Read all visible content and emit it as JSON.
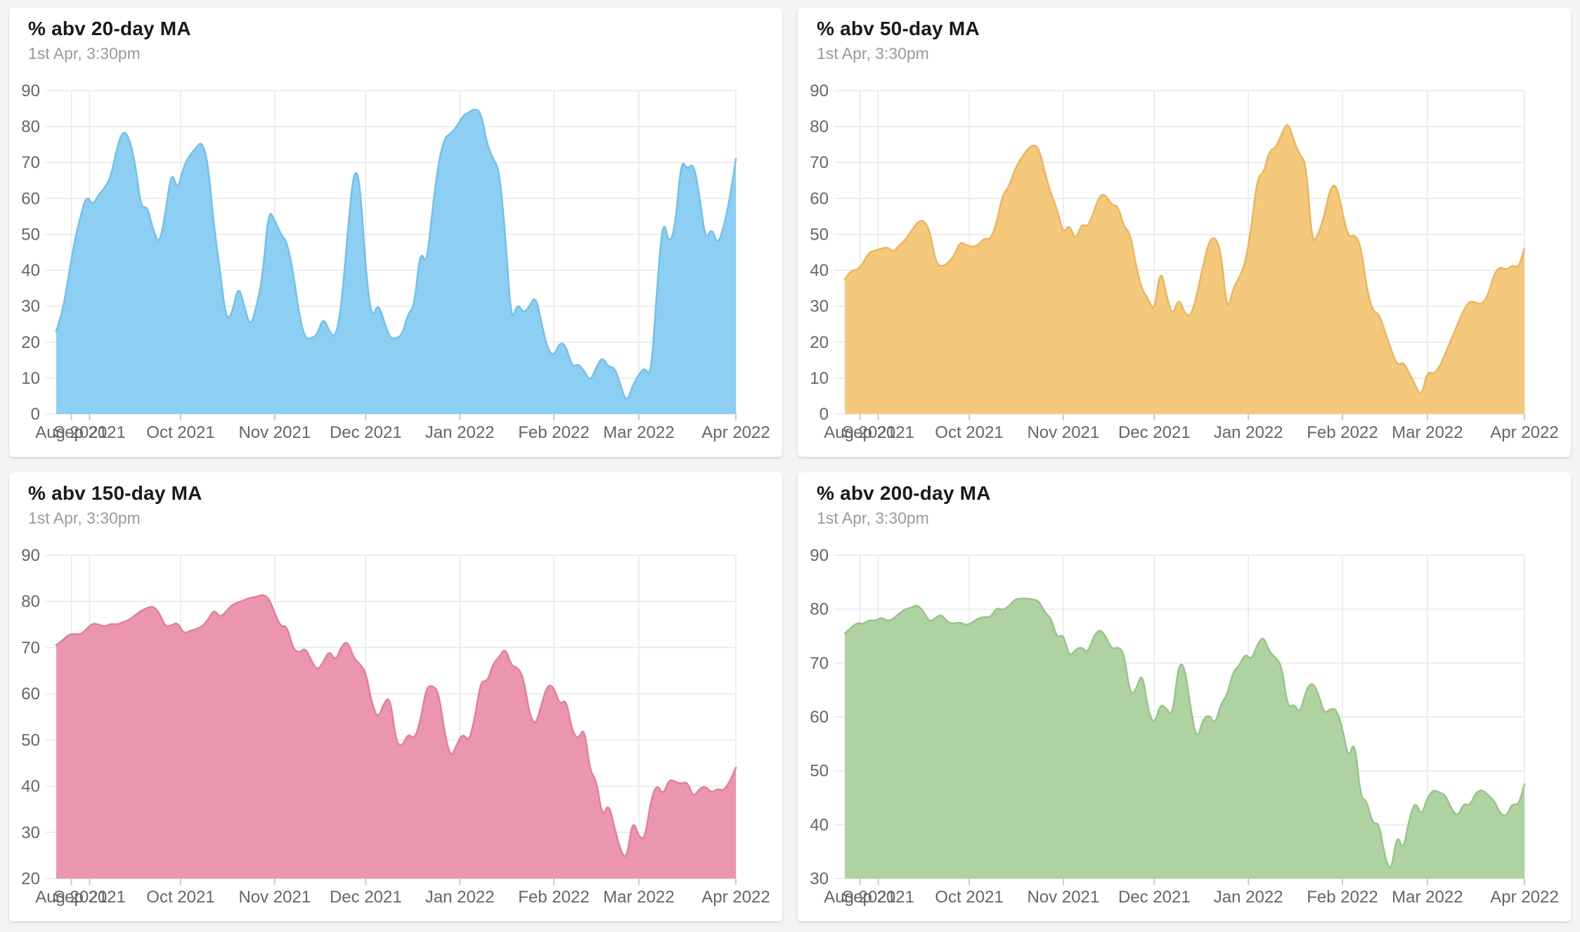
{
  "page": {
    "background": "#f4f4f5",
    "card_background": "#ffffff",
    "grid_color": "#e8e8e8",
    "tick_color": "#c9c9c9",
    "axis_label_color": "#666666",
    "title_color": "#1a1a1a",
    "subtitle_color": "#9a9a9a"
  },
  "chart_data": [
    {
      "type": "area",
      "title": "% abv 20-day MA",
      "subtitle": "1st Apr, 3:30pm",
      "fill_color": "#8CCFF2",
      "stroke_color": "#74C0EA",
      "ylim": [
        0,
        90
      ],
      "yticks": [
        0,
        10,
        20,
        30,
        40,
        50,
        60,
        70,
        80,
        90
      ],
      "x_domain_days": [
        0,
        224
      ],
      "x_tick_days": [
        5,
        11,
        41,
        72,
        102,
        133,
        164,
        192,
        224
      ],
      "x_tick_labels": [
        "Aug 2021",
        "Sep 2021",
        "Oct 2021",
        "Nov 2021",
        "Dec 2021",
        "Jan 2022",
        "Feb 2022",
        "Mar 2022",
        "Apr 2022"
      ],
      "legend": "off",
      "grid": "on",
      "values": [
        23,
        28,
        38,
        48,
        55,
        61,
        58,
        61,
        63,
        66,
        74,
        79,
        77,
        70,
        57,
        58,
        51,
        47,
        56,
        68,
        62,
        69,
        72,
        74,
        76,
        70,
        52,
        40,
        26,
        28,
        36,
        30,
        24,
        30,
        38,
        57,
        54,
        50,
        48,
        40,
        28,
        21,
        21,
        22,
        27,
        23,
        21,
        30,
        50,
        68,
        66,
        40,
        26,
        31,
        26,
        21,
        21,
        22,
        28,
        30,
        46,
        41,
        57,
        70,
        77,
        78,
        80,
        83,
        84,
        85,
        84,
        75,
        71,
        68,
        50,
        25,
        31,
        28,
        30,
        33,
        25,
        18,
        16,
        20,
        19,
        13,
        14,
        12,
        9,
        13,
        16,
        13,
        13,
        8,
        3,
        8,
        11,
        13,
        10,
        35,
        55,
        47,
        52,
        71,
        68,
        70,
        61,
        48,
        52,
        47,
        52,
        60,
        71
      ]
    },
    {
      "type": "area",
      "title": "% abv 50-day MA",
      "subtitle": "1st Apr, 3:30pm",
      "fill_color": "#F5C97B",
      "stroke_color": "#EBB45E",
      "ylim": [
        0,
        90
      ],
      "yticks": [
        0,
        10,
        20,
        30,
        40,
        50,
        60,
        70,
        80,
        90
      ],
      "x_domain_days": [
        0,
        224
      ],
      "x_tick_days": [
        5,
        11,
        41,
        72,
        102,
        133,
        164,
        192,
        224
      ],
      "x_tick_labels": [
        "Aug 2021",
        "Sep 2021",
        "Oct 2021",
        "Nov 2021",
        "Dec 2021",
        "Jan 2022",
        "Feb 2022",
        "Mar 2022",
        "Apr 2022"
      ],
      "legend": "off",
      "grid": "on",
      "values": [
        37.5,
        40,
        40,
        42,
        45,
        45.5,
        46,
        46.5,
        45,
        47,
        48.5,
        51,
        53.5,
        54,
        51,
        42,
        41,
        42,
        44,
        48,
        47,
        46.5,
        47,
        49,
        48.5,
        53,
        61,
        63,
        68,
        71,
        73.5,
        75,
        74,
        67,
        61,
        57,
        50,
        53,
        48,
        53,
        52,
        56,
        61,
        61,
        58,
        58,
        52,
        50.5,
        41,
        34.5,
        32,
        28,
        41,
        33,
        27,
        32.5,
        28,
        27,
        33,
        41,
        48,
        49.5,
        45,
        28,
        35,
        38,
        42,
        52,
        66,
        67,
        73.5,
        74,
        78,
        81.5,
        76,
        72,
        70,
        47,
        50,
        55,
        63,
        64,
        56,
        49,
        50,
        47,
        35,
        28.5,
        28,
        23,
        18,
        13.5,
        14.5,
        11.5,
        8,
        4.5,
        12,
        11,
        13,
        17,
        21,
        25,
        29,
        31.5,
        31,
        30.5,
        33,
        39,
        41,
        40,
        41.5,
        40.5,
        46
      ]
    },
    {
      "type": "area",
      "title": "% abv 150-day MA",
      "subtitle": "1st Apr, 3:30pm",
      "fill_color": "#EC95AF",
      "stroke_color": "#E27F9D",
      "ylim": [
        20,
        90
      ],
      "yticks": [
        20,
        30,
        40,
        50,
        60,
        70,
        80,
        90
      ],
      "x_domain_days": [
        0,
        224
      ],
      "x_tick_days": [
        5,
        11,
        41,
        72,
        102,
        133,
        164,
        192,
        224
      ],
      "x_tick_labels": [
        "Aug 2021",
        "Sep 2021",
        "Oct 2021",
        "Nov 2021",
        "Dec 2021",
        "Jan 2022",
        "Feb 2022",
        "Mar 2022",
        "Apr 2022"
      ],
      "legend": "off",
      "grid": "on",
      "values": [
        70.5,
        71.5,
        72.8,
        73,
        72.8,
        74,
        75.3,
        75,
        74.5,
        75.2,
        75,
        75.5,
        76,
        77,
        78,
        78.6,
        79,
        77.5,
        74.5,
        74.8,
        75.5,
        73,
        73.6,
        74,
        74.5,
        76,
        78.3,
        76.5,
        77.8,
        79.3,
        79.8,
        80.3,
        80.8,
        81,
        81.5,
        80.8,
        77.5,
        74.5,
        74.8,
        69.8,
        68.8,
        70,
        67.3,
        65,
        66.8,
        69.5,
        67,
        70.3,
        71.5,
        67.8,
        66.5,
        64.8,
        58,
        54.5,
        58,
        59.5,
        49.5,
        48.5,
        51.5,
        50,
        54,
        61.5,
        61.8,
        60.5,
        51.5,
        46,
        49,
        51.5,
        49.5,
        55,
        63,
        62.5,
        66.5,
        68,
        70,
        66,
        65.8,
        63.5,
        55.5,
        53,
        58,
        62,
        61.5,
        57.5,
        59,
        52,
        50,
        53,
        43,
        41.5,
        33,
        36.5,
        31,
        26,
        24,
        33,
        29,
        28.5,
        37,
        40.5,
        38,
        41.5,
        41,
        40.5,
        41,
        37.5,
        39.5,
        40,
        38.5,
        39.5,
        39,
        41,
        44
      ]
    },
    {
      "type": "area",
      "title": "% abv 200-day MA",
      "subtitle": "1st Apr, 3:30pm",
      "fill_color": "#AED2A2",
      "stroke_color": "#99C489",
      "ylim": [
        30,
        90
      ],
      "yticks": [
        30,
        40,
        50,
        60,
        70,
        80,
        90
      ],
      "x_domain_days": [
        0,
        224
      ],
      "x_tick_days": [
        5,
        11,
        41,
        72,
        102,
        133,
        164,
        192,
        224
      ],
      "x_tick_labels": [
        "Aug 2021",
        "Sep 2021",
        "Oct 2021",
        "Nov 2021",
        "Dec 2021",
        "Jan 2022",
        "Feb 2022",
        "Mar 2022",
        "Apr 2022"
      ],
      "legend": "off",
      "grid": "on",
      "values": [
        75.5,
        76.5,
        77.5,
        77.2,
        78,
        77.8,
        78.5,
        77.8,
        78.2,
        79.3,
        80,
        80.3,
        80.8,
        79.5,
        77.5,
        78.5,
        79,
        77.5,
        77.3,
        77.6,
        77,
        77.5,
        78.3,
        78.6,
        78.4,
        80.3,
        79.8,
        80.5,
        81.8,
        82,
        82,
        81.8,
        81.5,
        79.3,
        78.3,
        74.5,
        75.5,
        71,
        72.5,
        73,
        71.8,
        75,
        76.3,
        75,
        72.5,
        73,
        72,
        64,
        65,
        68.5,
        61,
        58.5,
        62.5,
        61.5,
        60,
        70,
        69.5,
        61.5,
        55.5,
        59.5,
        60.5,
        58.5,
        62.5,
        64,
        68.5,
        69.5,
        71.8,
        70.5,
        73.5,
        75,
        72,
        71,
        69.5,
        61.5,
        62.5,
        60.5,
        65,
        66.5,
        64.5,
        60.5,
        61.5,
        61.5,
        58,
        52,
        56,
        45,
        44.5,
        40,
        40.5,
        34,
        31,
        38.5,
        35,
        41,
        44.5,
        41.5,
        45,
        46.5,
        46,
        45.5,
        42.8,
        41.5,
        44,
        43.5,
        46,
        46.5,
        45.5,
        44.5,
        42,
        41.5,
        44,
        43.5,
        47.5
      ]
    }
  ]
}
